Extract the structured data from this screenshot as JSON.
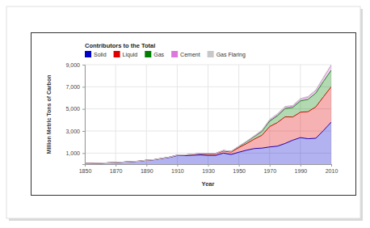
{
  "chart_data": {
    "type": "area",
    "title": "Contributors to the Total",
    "x_label": "Year",
    "y_label": "Million Metric Tons of Carbon",
    "stacked": true,
    "grid": true,
    "legend": "top",
    "x": [
      1850,
      1855,
      1860,
      1865,
      1870,
      1875,
      1880,
      1885,
      1890,
      1895,
      1900,
      1905,
      1910,
      1915,
      1920,
      1925,
      1930,
      1935,
      1940,
      1945,
      1950,
      1955,
      1960,
      1965,
      1970,
      1975,
      1980,
      1985,
      1990,
      1995,
      2000,
      2005,
      2010
    ],
    "series": [
      {
        "name": "Solid",
        "color": "#0000cc",
        "values": [
          54,
          72,
          91,
          116,
          146,
          181,
          228,
          261,
          345,
          394,
          507,
          610,
          777,
          765,
          806,
          837,
          792,
          792,
          1000,
          875,
          1077,
          1260,
          1410,
          1450,
          1556,
          1626,
          1870,
          2167,
          2400,
          2300,
          2342,
          3050,
          3800
        ]
      },
      {
        "name": "Liquid",
        "color": "#e00000",
        "values": [
          0,
          0,
          0,
          0,
          1,
          2,
          3,
          5,
          8,
          10,
          16,
          23,
          35,
          55,
          80,
          103,
          150,
          150,
          190,
          220,
          423,
          600,
          850,
          1163,
          1839,
          2132,
          2408,
          2100,
          2300,
          2450,
          2840,
          3050,
          3200
        ]
      },
      {
        "name": "Gas",
        "color": "#008000",
        "values": [
          0,
          0,
          0,
          0,
          0,
          0,
          0,
          1,
          2,
          2,
          3,
          4,
          8,
          10,
          14,
          22,
          32,
          32,
          43,
          55,
          97,
          160,
          227,
          351,
          493,
          612,
          739,
          866,
          1020,
          1120,
          1253,
          1400,
          1500
        ]
      },
      {
        "name": "Cement",
        "color": "#dd77dd",
        "values": [
          0,
          0,
          0,
          0,
          0,
          0,
          0,
          0,
          0,
          0,
          0,
          0,
          0,
          0,
          5,
          6,
          7,
          8,
          9,
          8,
          18,
          30,
          43,
          59,
          78,
          95,
          120,
          125,
          157,
          200,
          226,
          310,
          440
        ]
      },
      {
        "name": "Gas Flaring",
        "color": "#c8c8c8",
        "values": [
          0,
          0,
          0,
          0,
          0,
          0,
          0,
          0,
          0,
          0,
          0,
          0,
          0,
          0,
          0,
          0,
          0,
          0,
          0,
          0,
          23,
          30,
          39,
          55,
          87,
          92,
          89,
          55,
          60,
          60,
          61,
          65,
          60
        ]
      }
    ],
    "xlim": [
      1850,
      2010
    ],
    "xticks": [
      1850,
      1870,
      1890,
      1910,
      1930,
      1950,
      1970,
      1990,
      2010
    ],
    "ylim": [
      0,
      9000
    ],
    "yticks": [
      {
        "value": 1000,
        "label": "1,000"
      },
      {
        "value": 3000,
        "label": "3,000"
      },
      {
        "value": 5000,
        "label": "5,000"
      },
      {
        "value": 7000,
        "label": "7,000"
      },
      {
        "value": 9000,
        "label": "9,000"
      }
    ]
  }
}
